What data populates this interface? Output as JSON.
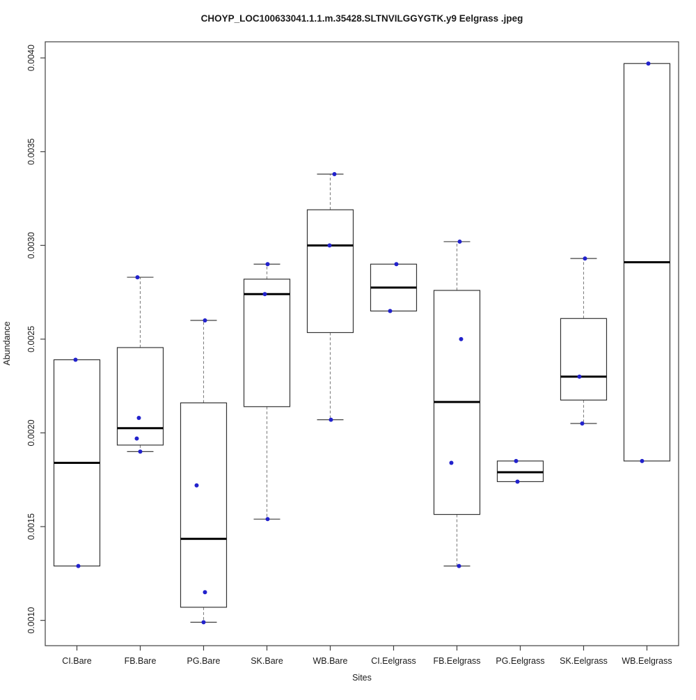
{
  "figure": {
    "title": "CHOYP_LOC100633041.1.1.m.35428.SLTNVILGGYGTK.y9 Eelgrass .jpeg"
  },
  "chart_data": {
    "type": "boxplot",
    "title": "CHOYP_LOC100633041.1.1.m.35428.SLTNVILGGYGTK.y9 Eelgrass .jpeg",
    "xlabel": "Sites",
    "ylabel": "Abundance",
    "grid": false,
    "legend": null,
    "ylim": [
      0.000865,
      0.004086
    ],
    "yticks": [
      0.001,
      0.0015,
      0.002,
      0.0025,
      0.003,
      0.0035,
      0.004
    ],
    "ytick_labels": [
      "0.0010",
      "0.0015",
      "0.0020",
      "0.0025",
      "0.0030",
      "0.0035",
      "0.0040"
    ],
    "categories": [
      "CI.Bare",
      "FB.Bare",
      "PG.Bare",
      "SK.Bare",
      "WB.Bare",
      "CI.Eelgrass",
      "FB.Eelgrass",
      "PG.Eelgrass",
      "SK.Eelgrass",
      "WB.Eelgrass"
    ],
    "colors": {
      "box_border": "#333333",
      "median": "#000000",
      "whisker": "#808080",
      "cap": "#404040",
      "frame": "#404040",
      "tick": "#404040",
      "point": "#2222CC",
      "box_fill": "#ffffff"
    },
    "series": [
      {
        "category": "CI.Bare",
        "whisker_low": 0.00129,
        "q1": 0.00129,
        "median": 0.00184,
        "q3": 0.00239,
        "whisker_high": 0.00239,
        "points": [
          {
            "y": 0.00239,
            "dx": -2
          },
          {
            "y": 0.00129,
            "dx": 2
          }
        ]
      },
      {
        "category": "FB.Bare",
        "whisker_low": 0.0019,
        "q1": 0.001935,
        "median": 0.002025,
        "q3": 0.002455,
        "whisker_high": 0.00283,
        "points": [
          {
            "y": 0.00283,
            "dx": -4
          },
          {
            "y": 0.00208,
            "dx": -2
          },
          {
            "y": 0.00197,
            "dx": -5
          },
          {
            "y": 0.0019,
            "dx": 0
          }
        ]
      },
      {
        "category": "PG.Bare",
        "whisker_low": 0.00099,
        "q1": 0.00107,
        "median": 0.001435,
        "q3": 0.00216,
        "whisker_high": 0.0026,
        "points": [
          {
            "y": 0.0026,
            "dx": 2
          },
          {
            "y": 0.00172,
            "dx": -10
          },
          {
            "y": 0.00115,
            "dx": 2
          },
          {
            "y": 0.00099,
            "dx": 0
          }
        ]
      },
      {
        "category": "SK.Bare",
        "whisker_low": 0.00154,
        "q1": 0.00214,
        "median": 0.00274,
        "q3": 0.00282,
        "whisker_high": 0.0029,
        "points": [
          {
            "y": 0.0029,
            "dx": 1
          },
          {
            "y": 0.00274,
            "dx": -3
          },
          {
            "y": 0.00154,
            "dx": 1
          }
        ]
      },
      {
        "category": "WB.Bare",
        "whisker_low": 0.00207,
        "q1": 0.002535,
        "median": 0.003,
        "q3": 0.00319,
        "whisker_high": 0.00338,
        "points": [
          {
            "y": 0.00338,
            "dx": 6
          },
          {
            "y": 0.003,
            "dx": -1
          },
          {
            "y": 0.00207,
            "dx": 1
          }
        ]
      },
      {
        "category": "CI.Eelgrass",
        "whisker_low": 0.00265,
        "q1": 0.00265,
        "median": 0.002775,
        "q3": 0.0029,
        "whisker_high": 0.0029,
        "points": [
          {
            "y": 0.0029,
            "dx": 4
          },
          {
            "y": 0.00265,
            "dx": -5
          }
        ]
      },
      {
        "category": "FB.Eelgrass",
        "whisker_low": 0.00129,
        "q1": 0.001565,
        "median": 0.002165,
        "q3": 0.00276,
        "whisker_high": 0.00302,
        "points": [
          {
            "y": 0.00302,
            "dx": 4
          },
          {
            "y": 0.0025,
            "dx": 6
          },
          {
            "y": 0.00184,
            "dx": -8
          },
          {
            "y": 0.00129,
            "dx": 3
          }
        ]
      },
      {
        "category": "PG.Eelgrass",
        "whisker_low": 0.00174,
        "q1": 0.00174,
        "median": 0.00179,
        "q3": 0.00185,
        "whisker_high": 0.00185,
        "points": [
          {
            "y": 0.00185,
            "dx": -6
          },
          {
            "y": 0.00174,
            "dx": -4
          }
        ]
      },
      {
        "category": "SK.Eelgrass",
        "whisker_low": 0.00205,
        "q1": 0.002175,
        "median": 0.0023,
        "q3": 0.00261,
        "whisker_high": 0.00293,
        "points": [
          {
            "y": 0.00293,
            "dx": 2
          },
          {
            "y": 0.0023,
            "dx": -6
          },
          {
            "y": 0.00205,
            "dx": -2
          }
        ]
      },
      {
        "category": "WB.Eelgrass",
        "whisker_low": 0.00185,
        "q1": 0.00185,
        "median": 0.00291,
        "q3": 0.00397,
        "whisker_high": 0.00397,
        "points": [
          {
            "y": 0.00397,
            "dx": 2
          },
          {
            "y": 0.00185,
            "dx": -7
          }
        ]
      }
    ]
  }
}
